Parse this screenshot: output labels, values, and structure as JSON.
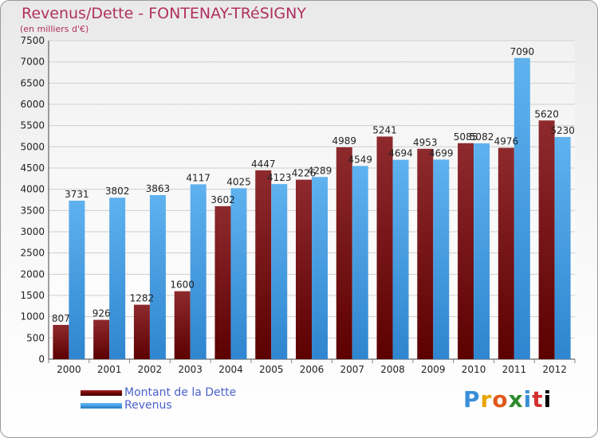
{
  "chart_data": {
    "type": "bar",
    "title": "Revenus/Dette - FONTENAY-TRéSIGNY",
    "subtitle": "(en milliers d'€)",
    "categories": [
      "2000",
      "2001",
      "2002",
      "2003",
      "2004",
      "2005",
      "2006",
      "2007",
      "2008",
      "2009",
      "2010",
      "2011",
      "2012"
    ],
    "series": [
      {
        "name": "Montant de la Dette",
        "color": "#6a0000",
        "values": [
          807,
          926,
          1282,
          1600,
          3602,
          4447,
          4226,
          4989,
          5241,
          4953,
          5085,
          4976,
          5620
        ]
      },
      {
        "name": "Revenus",
        "color": "#3c96dc",
        "values": [
          3731,
          3802,
          3863,
          4117,
          4025,
          4123,
          4289,
          4549,
          4694,
          4699,
          5082,
          7090,
          5230
        ]
      }
    ],
    "ylim": [
      0,
      7500
    ],
    "yticks": [
      0,
      500,
      1000,
      1500,
      2000,
      2500,
      3000,
      3500,
      4000,
      4500,
      5000,
      5500,
      6000,
      6500,
      7000,
      7500
    ],
    "grid": true,
    "legend": "bottom-left",
    "watermark": {
      "letters": [
        "P",
        "r",
        "o",
        "x",
        "i",
        "t",
        "i"
      ]
    }
  }
}
